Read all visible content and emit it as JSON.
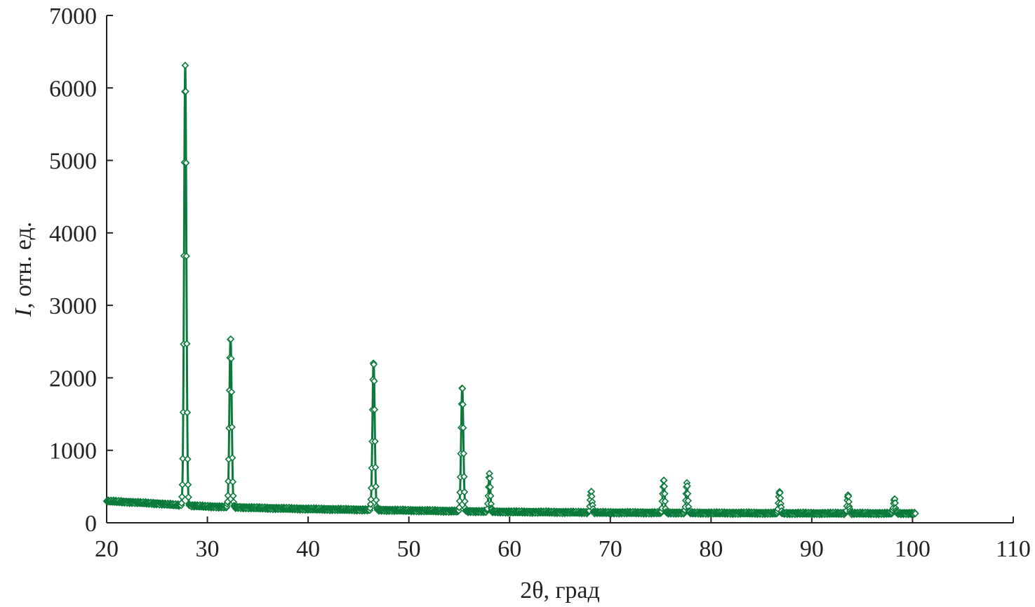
{
  "chart_data": {
    "type": "scatter",
    "title": "",
    "xlabel": "2θ, град",
    "ylabel_italic": "I",
    "ylabel_rest": ", отн. ед.",
    "xlim": [
      20,
      110
    ],
    "ylim": [
      0,
      7000
    ],
    "x_ticks": [
      20,
      30,
      40,
      50,
      60,
      70,
      80,
      90,
      100,
      110
    ],
    "y_ticks": [
      0,
      1000,
      2000,
      3000,
      4000,
      5000,
      6000,
      7000
    ],
    "grid": false,
    "legend": "none",
    "color": "#0b7a3b",
    "marker": "diamond-open",
    "x_range_measured": [
      20,
      100.3
    ],
    "background_baseline": [
      [
        20,
        300
      ],
      [
        25,
        265
      ],
      [
        27,
        245
      ],
      [
        30,
        225
      ],
      [
        35,
        205
      ],
      [
        40,
        190
      ],
      [
        45,
        180
      ],
      [
        50,
        170
      ],
      [
        55,
        160
      ],
      [
        60,
        150
      ],
      [
        70,
        140
      ],
      [
        80,
        135
      ],
      [
        90,
        130
      ],
      [
        100.3,
        130
      ]
    ],
    "peaks": [
      {
        "x": 27.8,
        "height": 6070
      },
      {
        "x": 32.3,
        "height": 2360
      },
      {
        "x": 46.5,
        "height": 2050
      },
      {
        "x": 55.3,
        "height": 1710
      },
      {
        "x": 58.0,
        "height": 510
      },
      {
        "x": 68.1,
        "height": 290
      },
      {
        "x": 75.3,
        "height": 460
      },
      {
        "x": 77.6,
        "height": 400
      },
      {
        "x": 86.8,
        "height": 310
      },
      {
        "x": 93.6,
        "height": 250
      },
      {
        "x": 98.2,
        "height": 200
      }
    ]
  }
}
